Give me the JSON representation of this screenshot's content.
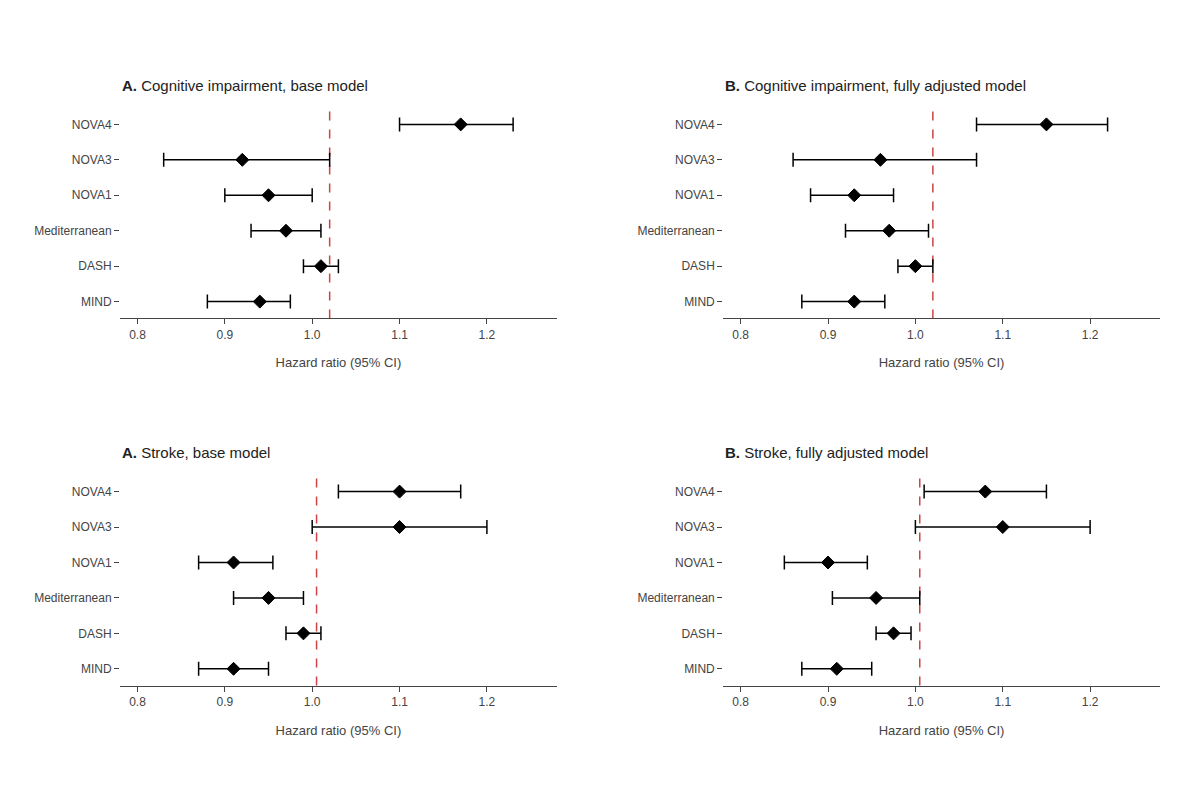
{
  "chart_data": [
    {
      "type": "forest",
      "title": "A. Cognitive impairment, base model",
      "orientation": "horizontal",
      "categories": [
        "NOVA4",
        "NOVA3",
        "NOVA1",
        "Mediterranean",
        "DASH",
        "MIND"
      ],
      "values": [
        1.17,
        0.92,
        0.95,
        0.97,
        1.01,
        0.94
      ],
      "ci_low": [
        1.1,
        0.83,
        0.9,
        0.93,
        0.99,
        0.88
      ],
      "ci_high": [
        1.23,
        1.02,
        1.0,
        1.01,
        1.03,
        0.975
      ],
      "xlabel": "Hazard ratio (95% CI)",
      "xlim": [
        0.78,
        1.28
      ],
      "xticks": [
        0.8,
        0.9,
        {
          "value": 1.0,
          "label": "1.0"
        },
        1.1,
        1.2
      ],
      "reference_line": {
        "value": 1.02,
        "color": "#cc4444",
        "line_style": "dashed"
      },
      "marker": "diamond",
      "color": "black",
      "grid": false
    },
    {
      "type": "forest",
      "title": "B. Cognitive impairment, fully adjusted model",
      "orientation": "horizontal",
      "categories": [
        "NOVA4",
        "NOVA3",
        "NOVA1",
        "Mediterranean",
        "DASH",
        "MIND"
      ],
      "values": [
        1.15,
        0.96,
        0.93,
        0.97,
        1.0,
        0.93
      ],
      "ci_low": [
        1.07,
        0.86,
        0.88,
        0.92,
        0.98,
        0.87
      ],
      "ci_high": [
        1.22,
        1.07,
        0.975,
        1.015,
        1.02,
        0.965
      ],
      "xlabel": "Hazard ratio (95% CI)",
      "xlim": [
        0.78,
        1.28
      ],
      "xticks": [
        0.8,
        0.9,
        {
          "value": 1.0,
          "label": "1.0"
        },
        1.1,
        1.2
      ],
      "reference_line": {
        "value": 1.02,
        "color": "#cc4444",
        "line_style": "dashed"
      },
      "marker": "diamond",
      "color": "black",
      "grid": false
    },
    {
      "type": "forest",
      "title": "A. Stroke, base model",
      "orientation": "horizontal",
      "categories": [
        "NOVA4",
        "NOVA3",
        "NOVA1",
        "Mediterranean",
        "DASH",
        "MIND"
      ],
      "values": [
        1.1,
        1.1,
        0.91,
        0.95,
        0.99,
        0.91
      ],
      "ci_low": [
        1.03,
        1.0,
        0.87,
        0.91,
        0.97,
        0.87
      ],
      "ci_high": [
        1.17,
        1.2,
        0.955,
        0.99,
        1.01,
        0.95
      ],
      "xlabel": "Hazard ratio (95% CI)",
      "xlim": [
        0.78,
        1.28
      ],
      "xticks": [
        0.8,
        0.9,
        {
          "value": 1.0,
          "label": "1.0"
        },
        1.1,
        1.2
      ],
      "reference_line": {
        "value": 1.005,
        "color": "#cc4444",
        "line_style": "dashed"
      },
      "marker": "diamond",
      "color": "black",
      "grid": false
    },
    {
      "type": "forest",
      "title": "B. Stroke, fully adjusted model",
      "orientation": "horizontal",
      "categories": [
        "NOVA4",
        "NOVA3",
        "NOVA1",
        "Mediterranean",
        "DASH",
        "MIND"
      ],
      "values": [
        1.08,
        1.1,
        0.9,
        0.955,
        0.975,
        0.91
      ],
      "ci_low": [
        1.01,
        1.0,
        0.85,
        0.905,
        0.955,
        0.87
      ],
      "ci_high": [
        1.15,
        1.2,
        0.945,
        1.005,
        0.995,
        0.95
      ],
      "xlabel": "Hazard ratio (95% CI)",
      "xlim": [
        0.78,
        1.28
      ],
      "xticks": [
        0.8,
        0.9,
        {
          "value": 1.0,
          "label": "1.0"
        },
        1.1,
        1.2
      ],
      "reference_line": {
        "value": 1.005,
        "color": "#cc4444",
        "line_style": "dashed"
      },
      "marker": "diamond",
      "color": "black",
      "grid": false
    }
  ]
}
